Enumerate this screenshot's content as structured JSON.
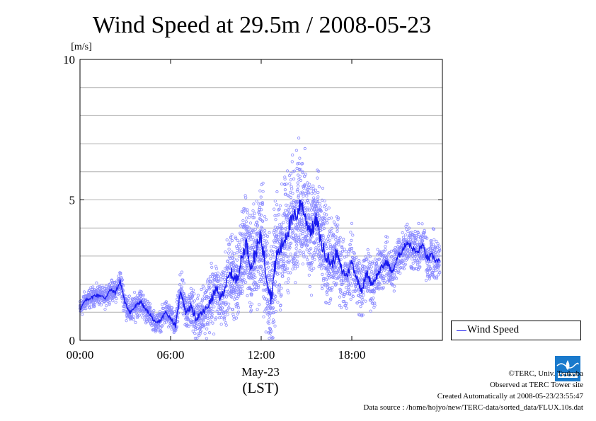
{
  "chart_data": {
    "type": "scatter",
    "title": "Wind Speed at 29.5m / 2008-05-23",
    "ylabel": "[m/s]",
    "xlabel": "(LST)",
    "date_label": "May-23",
    "ylim": [
      0,
      10
    ],
    "xlim": [
      "00:00",
      "24:00"
    ],
    "y_ticks": [
      "0",
      "5",
      "10"
    ],
    "y_gridlines": [
      1,
      2,
      3,
      4,
      5,
      6,
      7,
      8,
      9
    ],
    "x_ticks": [
      "00:00",
      "06:00",
      "12:00",
      "18:00"
    ],
    "grid": true,
    "legend_position": "right",
    "series": [
      {
        "name": "Wind Speed",
        "color": "#1a1aee",
        "point_color": "#8888ff",
        "x": [
          "00:00",
          "00:20",
          "00:40",
          "01:00",
          "01:20",
          "01:40",
          "02:00",
          "02:20",
          "02:40",
          "03:00",
          "03:20",
          "03:40",
          "04:00",
          "04:20",
          "04:40",
          "05:00",
          "05:20",
          "05:40",
          "06:00",
          "06:20",
          "06:40",
          "07:00",
          "07:20",
          "07:40",
          "08:00",
          "08:20",
          "08:40",
          "09:00",
          "09:20",
          "09:40",
          "10:00",
          "10:20",
          "10:40",
          "11:00",
          "11:20",
          "11:40",
          "12:00",
          "12:20",
          "12:40",
          "13:00",
          "13:20",
          "13:40",
          "14:00",
          "14:20",
          "14:40",
          "15:00",
          "15:20",
          "15:40",
          "16:00",
          "16:20",
          "16:40",
          "17:00",
          "17:20",
          "17:40",
          "18:00",
          "18:20",
          "18:40",
          "19:00",
          "19:20",
          "19:40",
          "20:00",
          "20:20",
          "20:40",
          "21:00",
          "21:20",
          "21:40",
          "22:00",
          "22:20",
          "22:40",
          "23:00",
          "23:20",
          "23:40"
        ],
        "values": [
          1.1,
          1.4,
          1.5,
          1.6,
          1.6,
          1.5,
          1.8,
          1.7,
          2.1,
          1.3,
          1.0,
          1.2,
          1.4,
          1.1,
          0.9,
          0.6,
          0.7,
          1.0,
          0.8,
          0.5,
          1.8,
          1.0,
          1.2,
          0.8,
          0.9,
          1.1,
          1.4,
          1.8,
          1.5,
          2.0,
          2.4,
          2.1,
          2.8,
          3.5,
          2.6,
          3.2,
          3.7,
          2.4,
          1.5,
          3.0,
          3.3,
          3.8,
          4.2,
          4.5,
          4.9,
          4.2,
          3.9,
          4.3,
          3.4,
          3.0,
          2.7,
          3.1,
          2.5,
          2.3,
          2.8,
          2.2,
          1.8,
          2.4,
          2.0,
          2.3,
          2.6,
          2.8,
          2.4,
          2.9,
          3.2,
          3.5,
          3.3,
          3.1,
          3.4,
          2.9,
          3.0,
          2.8
        ],
        "spread": [
          0.3,
          0.3,
          0.3,
          0.3,
          0.3,
          0.3,
          0.3,
          0.3,
          0.4,
          0.4,
          0.4,
          0.4,
          0.4,
          0.4,
          0.3,
          0.3,
          0.3,
          0.4,
          0.4,
          0.4,
          0.6,
          0.6,
          0.7,
          0.7,
          0.8,
          0.8,
          0.9,
          1.0,
          1.0,
          1.1,
          1.2,
          1.3,
          1.4,
          1.5,
          1.6,
          1.7,
          1.8,
          1.8,
          1.8,
          1.7,
          1.7,
          1.8,
          1.8,
          1.8,
          1.8,
          1.7,
          1.7,
          1.6,
          1.5,
          1.4,
          1.3,
          1.2,
          1.1,
          1.0,
          1.0,
          0.9,
          0.9,
          0.8,
          0.8,
          0.8,
          0.7,
          0.7,
          0.7,
          0.7,
          0.7,
          0.7,
          0.7,
          0.7,
          0.7,
          0.7,
          0.7,
          0.7
        ]
      }
    ]
  },
  "footer": {
    "copyright": "©TERC, Univ. Tsukuba",
    "site": "Observed at TERC Tower site",
    "created": "Created Automatically at 2008-05-23/23:55:47",
    "source": "Data source : /home/hojyo/new/TERC-data/sorted_data/FLUX.10s.dat"
  },
  "logo": {
    "icon": "terc-logo-icon",
    "color": "#1a7acc"
  }
}
